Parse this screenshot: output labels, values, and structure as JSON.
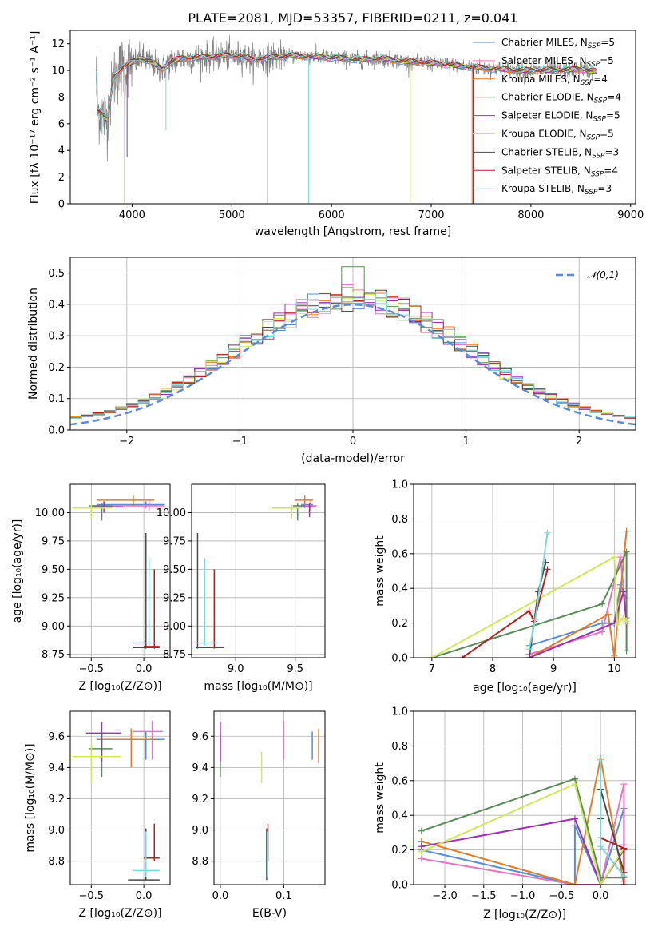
{
  "figure": {
    "title": "PLATE=2081, MJD=53357, FIBERID=0211, z=0.041"
  },
  "colors": {
    "Chabrier MILES": "#5b8bd5",
    "Salpeter MILES": "#e377c2",
    "Kroupa MILES": "#e07b2a",
    "Chabrier ELODIE": "#5a8a5a",
    "Salpeter ELODIE": "#9b30b0",
    "Kroupa ELODIE": "#cfe85a",
    "Chabrier STELIB": "#4a4a4a",
    "Salpeter STELIB": "#b22222",
    "Kroupa STELIB": "#7fd6d6"
  },
  "chart_data": [
    {
      "id": "spectrum",
      "type": "line",
      "title": "PLATE=2081, MJD=53357, FIBERID=0211, z=0.041",
      "xlabel": "wavelength [Angstrom, rest frame]",
      "ylabel": "Flux [fλ 10⁻¹⁷ erg cm⁻² s⁻¹ A⁻¹]",
      "xlim": [
        3380,
        9050
      ],
      "ylim": [
        0,
        13
      ],
      "xticks": [
        4000,
        5000,
        6000,
        7000,
        8000,
        9000
      ],
      "yticks": [
        0,
        2,
        4,
        6,
        8,
        10,
        12
      ],
      "legend_position": "right",
      "legend": [
        {
          "label": "Chabrier MILES, N",
          "sub": "SSP",
          "tail": "=5",
          "color": "#5b8bd5"
        },
        {
          "label": "Salpeter MILES, N",
          "sub": "SSP",
          "tail": "=5",
          "color": "#e377c2"
        },
        {
          "label": "Kroupa MILES, N",
          "sub": "SSP",
          "tail": "=4",
          "color": "#e07b2a"
        },
        {
          "label": "Chabrier ELODIE, N",
          "sub": "SSP",
          "tail": "=4",
          "color": "#5a8a5a"
        },
        {
          "label": "Salpeter ELODIE, N",
          "sub": "SSP",
          "tail": "=5",
          "color": "#9b30b0"
        },
        {
          "label": "Kroupa ELODIE, N",
          "sub": "SSP",
          "tail": "=5",
          "color": "#cfe85a"
        },
        {
          "label": "Chabrier STELIB, N",
          "sub": "SSP",
          "tail": "=3",
          "color": "#4a4a4a"
        },
        {
          "label": "Salpeter STELIB, N",
          "sub": "SSP",
          "tail": "=4",
          "color": "#b22222"
        },
        {
          "label": "Kroupa STELIB, N",
          "sub": "SSP",
          "tail": "=3",
          "color": "#7fd6d6"
        }
      ],
      "observed_color": "#808080",
      "continuum": [
        [
          3650,
          7.1
        ],
        [
          3750,
          6.3
        ],
        [
          3820,
          9.5
        ],
        [
          3900,
          10.2
        ],
        [
          4000,
          10.6
        ],
        [
          4100,
          10.9
        ],
        [
          4200,
          10.6
        ],
        [
          4300,
          10.1
        ],
        [
          4400,
          10.7
        ],
        [
          4500,
          10.9
        ],
        [
          4700,
          11.0
        ],
        [
          4900,
          11.1
        ],
        [
          5100,
          11.1
        ],
        [
          5200,
          10.8
        ],
        [
          5400,
          11.0
        ],
        [
          5600,
          11.1
        ],
        [
          5900,
          11.0
        ],
        [
          6100,
          10.9
        ],
        [
          6300,
          10.8
        ],
        [
          6500,
          10.9
        ],
        [
          6700,
          10.7
        ],
        [
          6900,
          10.6
        ],
        [
          7100,
          10.5
        ],
        [
          7300,
          10.3
        ],
        [
          7500,
          10.2
        ],
        [
          7700,
          10.1
        ],
        [
          7900,
          10.0
        ],
        [
          8100,
          10.0
        ],
        [
          8300,
          10.0
        ],
        [
          8500,
          10.1
        ],
        [
          8650,
          9.9
        ]
      ]
    },
    {
      "id": "residuals",
      "type": "bar",
      "xlabel": "(data-model)/error",
      "ylabel": "Normed distribution",
      "xlim": [
        -2.5,
        2.5
      ],
      "ylim": [
        0,
        0.55
      ],
      "xticks": [
        -2,
        -1,
        0,
        1,
        2
      ],
      "yticks": [
        0.0,
        0.1,
        0.2,
        0.3,
        0.4,
        0.5
      ],
      "bin_edges_start": -2.5,
      "bin_width": 0.1,
      "reference_curve": {
        "name": "𝒩(0,1)",
        "color": "#5b8bd5",
        "mu": 0,
        "sigma": 1
      },
      "legend_position": "top-right"
    },
    {
      "id": "age_vs_Z",
      "type": "scatter",
      "xlabel": "Z [log₁₀(Z/Z⊙)]",
      "ylabel": "age  [log₁₀(age/yr)]",
      "xlim": [
        -0.7,
        0.25
      ],
      "ylim": [
        8.72,
        10.25
      ],
      "xticks": [
        -0.5,
        0.0
      ],
      "yticks": [
        8.75,
        9.0,
        9.25,
        9.5,
        9.75,
        10.0
      ],
      "points": [
        {
          "c": "#5b8bd5",
          "x": 0.02,
          "y": 10.07,
          "xe": [
            -0.45,
            0.2
          ],
          "ye": [
            10.04,
            10.1
          ]
        },
        {
          "c": "#e377c2",
          "x": 0.05,
          "y": 10.06,
          "xe": [
            -0.5,
            0.2
          ],
          "ye": [
            10.02,
            10.12
          ]
        },
        {
          "c": "#e07b2a",
          "x": -0.1,
          "y": 10.11,
          "xe": [
            -0.45,
            0.1
          ],
          "ye": [
            10.06,
            10.15
          ]
        },
        {
          "c": "#5a8a5a",
          "x": -0.4,
          "y": 10.06,
          "xe": [
            -0.52,
            -0.3
          ],
          "ye": [
            9.93,
            10.08
          ]
        },
        {
          "c": "#9b30b0",
          "x": -0.38,
          "y": 10.05,
          "xe": [
            -0.5,
            -0.2
          ],
          "ye": [
            10.0,
            10.1
          ]
        },
        {
          "c": "#cfe85a",
          "x": -0.5,
          "y": 10.04,
          "xe": [
            -0.68,
            -0.3
          ],
          "ye": [
            9.95,
            10.07
          ]
        },
        {
          "c": "#4a4a4a",
          "x": 0.02,
          "y": 8.81,
          "xe": [
            -0.1,
            0.15
          ],
          "ye": [
            8.8,
            9.82
          ]
        },
        {
          "c": "#b22222",
          "x": 0.1,
          "y": 8.82,
          "xe": [
            0.0,
            0.15
          ],
          "ye": [
            8.8,
            9.5
          ]
        },
        {
          "c": "#7fd6d6",
          "x": 0.05,
          "y": 8.85,
          "xe": [
            -0.1,
            0.15
          ],
          "ye": [
            8.83,
            9.6
          ]
        }
      ]
    },
    {
      "id": "age_vs_mass",
      "type": "scatter",
      "xlabel": "mass [log₁₀(M/M⊙)]",
      "ylabel": "",
      "xlim": [
        8.63,
        9.75
      ],
      "ylim": [
        8.72,
        10.25
      ],
      "xticks": [
        9.0,
        9.5
      ],
      "yticks": [
        8.75,
        9.0,
        9.25,
        9.5,
        9.75,
        10.0
      ],
      "points": [
        {
          "c": "#5b8bd5",
          "x": 9.58,
          "y": 10.07,
          "xe": [
            9.55,
            9.65
          ],
          "ye": [
            10.04,
            10.1
          ]
        },
        {
          "c": "#e377c2",
          "x": 9.63,
          "y": 10.06,
          "xe": [
            9.55,
            9.68
          ],
          "ye": [
            10.02,
            10.12
          ]
        },
        {
          "c": "#e07b2a",
          "x": 9.58,
          "y": 10.11,
          "xe": [
            9.5,
            9.65
          ],
          "ye": [
            10.06,
            10.15
          ]
        },
        {
          "c": "#5a8a5a",
          "x": 9.52,
          "y": 10.06,
          "xe": [
            9.48,
            9.58
          ],
          "ye": [
            9.93,
            10.08
          ]
        },
        {
          "c": "#9b30b0",
          "x": 9.62,
          "y": 10.05,
          "xe": [
            9.55,
            9.66
          ],
          "ye": [
            9.96,
            10.08
          ]
        },
        {
          "c": "#cfe85a",
          "x": 9.47,
          "y": 10.04,
          "xe": [
            9.3,
            9.55
          ],
          "ye": [
            9.95,
            10.07
          ]
        },
        {
          "c": "#4a4a4a",
          "x": 8.68,
          "y": 8.81,
          "xe": [
            8.67,
            8.8
          ],
          "ye": [
            8.8,
            9.82
          ]
        },
        {
          "c": "#b22222",
          "x": 8.82,
          "y": 8.81,
          "xe": [
            8.67,
            8.9
          ],
          "ye": [
            8.8,
            9.5
          ]
        },
        {
          "c": "#7fd6d6",
          "x": 8.74,
          "y": 8.85,
          "xe": [
            8.67,
            8.85
          ],
          "ye": [
            8.83,
            9.6
          ]
        }
      ]
    },
    {
      "id": "massweight_vs_age",
      "type": "line",
      "xlabel": "age  [log₁₀(age/yr)]",
      "ylabel": "mass weight",
      "xlim": [
        6.7,
        10.35
      ],
      "ylim": [
        0,
        1
      ],
      "xticks": [
        7,
        8,
        9,
        10
      ],
      "yticks": [
        0.0,
        0.2,
        0.4,
        0.6,
        0.8,
        1.0
      ],
      "series": [
        {
          "c": "#5b8bd5",
          "x": [
            8.6,
            9.8,
            10.0,
            10.1,
            10.2
          ],
          "y": [
            0.07,
            0.2,
            0.2,
            0.42,
            0.34
          ]
        },
        {
          "c": "#e377c2",
          "x": [
            8.6,
            9.8,
            10.1,
            10.2
          ],
          "y": [
            0.02,
            0.15,
            0.58,
            0.23
          ]
        },
        {
          "c": "#e07b2a",
          "x": [
            8.6,
            9.9,
            10.0,
            10.2
          ],
          "y": [
            0.0,
            0.25,
            0.01,
            0.73
          ]
        },
        {
          "c": "#5a8a5a",
          "x": [
            7.0,
            9.8,
            10.2,
            10.2
          ],
          "y": [
            0.0,
            0.31,
            0.61,
            0.04
          ]
        },
        {
          "c": "#9b30b0",
          "x": [
            8.6,
            10.0,
            10.15,
            10.2
          ],
          "y": [
            0.0,
            0.2,
            0.38,
            0.2
          ]
        },
        {
          "c": "#cfe85a",
          "x": [
            7.0,
            10.0,
            10.05,
            10.15,
            10.2
          ],
          "y": [
            0.0,
            0.58,
            0.19,
            0.23,
            0.21
          ]
        },
        {
          "c": "#4a4a4a",
          "x": [
            8.6,
            8.75,
            8.87
          ],
          "y": [
            0.0,
            0.38,
            0.55
          ]
        },
        {
          "c": "#b22222",
          "x": [
            7.5,
            8.6,
            8.68,
            8.9
          ],
          "y": [
            0.0,
            0.27,
            0.21,
            0.51
          ]
        },
        {
          "c": "#7fd6d6",
          "x": [
            8.6,
            8.7,
            8.9
          ],
          "y": [
            0.05,
            0.22,
            0.72
          ]
        }
      ]
    },
    {
      "id": "mass_vs_Z",
      "type": "scatter",
      "xlabel": "Z [log₁₀(Z/Z⊙)]",
      "ylabel": "mass [log₁₀(M/M⊙)]",
      "xlim": [
        -0.7,
        0.25
      ],
      "ylim": [
        8.65,
        9.76
      ],
      "xticks": [
        -0.5,
        0.0
      ],
      "yticks": [
        8.8,
        9.0,
        9.2,
        9.4,
        9.6
      ],
      "points": [
        {
          "c": "#5b8bd5",
          "x": 0.02,
          "y": 9.58,
          "xe": [
            -0.45,
            0.2
          ],
          "ye": [
            9.45,
            9.63
          ]
        },
        {
          "c": "#e377c2",
          "x": 0.08,
          "y": 9.63,
          "xe": [
            -0.1,
            0.18
          ],
          "ye": [
            9.45,
            9.7
          ]
        },
        {
          "c": "#e07b2a",
          "x": -0.12,
          "y": 9.58,
          "xe": [
            -0.45,
            0.1
          ],
          "ye": [
            9.4,
            9.65
          ]
        },
        {
          "c": "#5a8a5a",
          "x": -0.4,
          "y": 9.52,
          "xe": [
            -0.52,
            -0.3
          ],
          "ye": [
            9.34,
            9.62
          ]
        },
        {
          "c": "#9b30b0",
          "x": -0.4,
          "y": 9.62,
          "xe": [
            -0.55,
            -0.22
          ],
          "ye": [
            9.44,
            9.69
          ]
        },
        {
          "c": "#cfe85a",
          "x": -0.5,
          "y": 9.47,
          "xe": [
            -0.68,
            -0.22
          ],
          "ye": [
            9.3,
            9.55
          ]
        },
        {
          "c": "#4a4a4a",
          "x": 0.02,
          "y": 8.68,
          "xe": [
            -0.15,
            0.15
          ],
          "ye": [
            8.68,
            9.01
          ]
        },
        {
          "c": "#b22222",
          "x": 0.1,
          "y": 8.82,
          "xe": [
            0.0,
            0.15
          ],
          "ye": [
            8.8,
            9.04
          ]
        },
        {
          "c": "#7fd6d6",
          "x": 0.02,
          "y": 8.74,
          "xe": [
            -0.1,
            0.15
          ],
          "ye": [
            8.7,
            8.99
          ]
        }
      ]
    },
    {
      "id": "mass_vs_EBV",
      "type": "scatter",
      "xlabel": "E(B-V)",
      "ylabel": "",
      "xlim": [
        -0.01,
        0.165
      ],
      "ylim": [
        8.65,
        9.76
      ],
      "xticks": [
        0.0,
        0.1
      ],
      "yticks": [
        8.8,
        9.0,
        9.2,
        9.4,
        9.6
      ],
      "points": [
        {
          "c": "#5b8bd5",
          "x": 0.145,
          "y": 9.58,
          "ye": [
            9.45,
            9.63
          ]
        },
        {
          "c": "#e377c2",
          "x": 0.1,
          "y": 9.63,
          "ye": [
            9.45,
            9.7
          ]
        },
        {
          "c": "#e07b2a",
          "x": 0.155,
          "y": 9.58,
          "ye": [
            9.43,
            9.65
          ]
        },
        {
          "c": "#5a8a5a",
          "x": 0.0,
          "y": 9.52,
          "ye": [
            9.34,
            9.62
          ]
        },
        {
          "c": "#9b30b0",
          "x": 0.0,
          "y": 9.62,
          "ye": [
            9.44,
            9.69
          ]
        },
        {
          "c": "#cfe85a",
          "x": 0.065,
          "y": 9.47,
          "ye": [
            9.3,
            9.5
          ]
        },
        {
          "c": "#4a4a4a",
          "x": 0.073,
          "y": 8.75,
          "ye": [
            8.68,
            9.01
          ]
        },
        {
          "c": "#b22222",
          "x": 0.075,
          "y": 8.82,
          "ye": [
            8.8,
            9.04
          ]
        },
        {
          "c": "#7fd6d6",
          "x": 0.074,
          "y": 8.74,
          "ye": [
            8.7,
            8.99
          ]
        }
      ]
    },
    {
      "id": "massweight_vs_Z",
      "type": "line",
      "xlabel": "Z [log₁₀(Z/Z⊙)]",
      "ylabel": "mass weight",
      "xlim": [
        -2.4,
        0.45
      ],
      "ylim": [
        0,
        1
      ],
      "xticks": [
        -2.0,
        -1.5,
        -1.0,
        -0.5,
        0.0
      ],
      "yticks": [
        0.0,
        0.2,
        0.4,
        0.6,
        0.8,
        1.0
      ],
      "series": [
        {
          "c": "#5b8bd5",
          "x": [
            -2.3,
            -0.33,
            -0.33,
            0.0,
            0.3,
            0.3
          ],
          "y": [
            0.2,
            0.0,
            0.34,
            0.0,
            0.44,
            0.02
          ]
        },
        {
          "c": "#e377c2",
          "x": [
            -2.3,
            -0.33,
            0.0,
            0.3,
            0.3
          ],
          "y": [
            0.15,
            0.0,
            0.0,
            0.58,
            0.23
          ]
        },
        {
          "c": "#e07b2a",
          "x": [
            -2.3,
            -0.33,
            0.0,
            0.3
          ],
          "y": [
            0.25,
            0.0,
            0.73,
            0.0
          ]
        },
        {
          "c": "#5a8a5a",
          "x": [
            -2.3,
            -0.33,
            0.0,
            0.0,
            0.3
          ],
          "y": [
            0.31,
            0.61,
            0.04,
            0.04,
            0.04
          ]
        },
        {
          "c": "#9b30b0",
          "x": [
            -2.3,
            -0.33,
            0.0,
            0.3
          ],
          "y": [
            0.22,
            0.38,
            0.0,
            0.2
          ]
        },
        {
          "c": "#cfe85a",
          "x": [
            -2.3,
            -0.33,
            0.0,
            0.3
          ],
          "y": [
            0.19,
            0.58,
            0.0,
            0.21
          ]
        },
        {
          "c": "#4a4a4a",
          "x": [
            0.0,
            0.0,
            0.3
          ],
          "y": [
            0.38,
            0.55,
            0.07
          ]
        },
        {
          "c": "#b22222",
          "x": [
            0.0,
            0.3,
            0.3
          ],
          "y": [
            0.27,
            0.21,
            0.0
          ]
        },
        {
          "c": "#7fd6d6",
          "x": [
            0.0,
            0.0,
            0.3
          ],
          "y": [
            0.72,
            0.22,
            0.05
          ]
        }
      ]
    }
  ]
}
